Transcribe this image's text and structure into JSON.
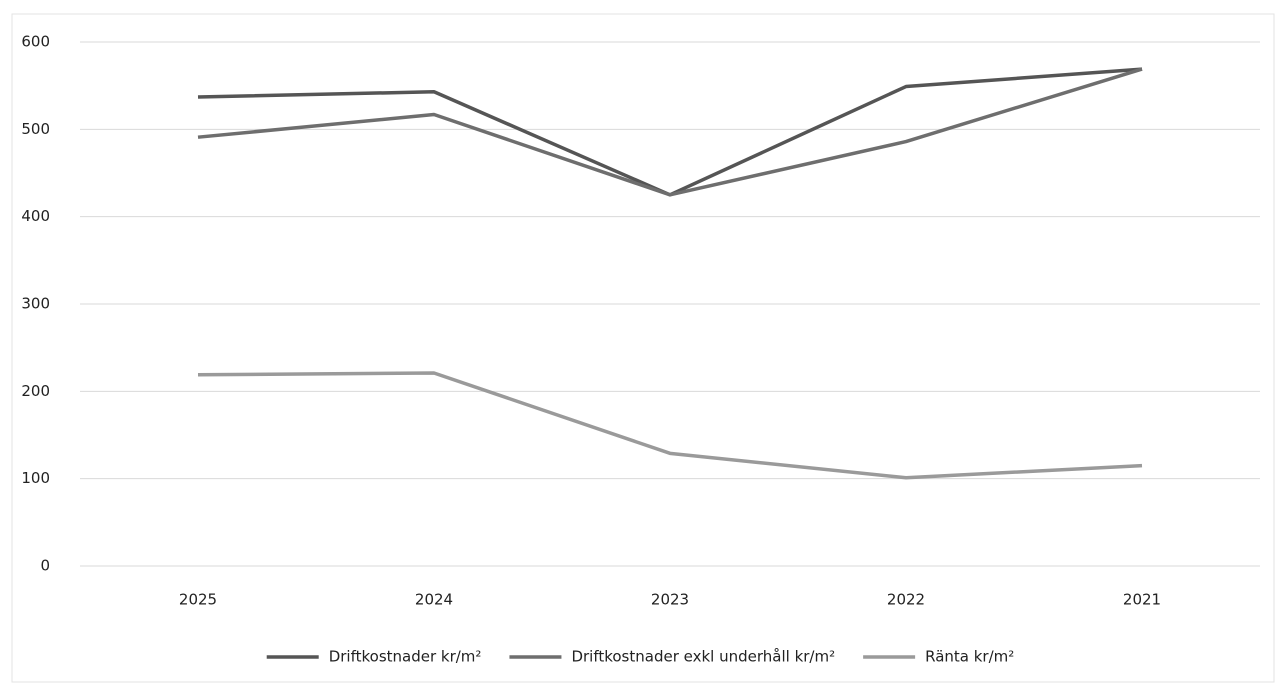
{
  "chart_data": {
    "type": "line",
    "categories": [
      "2025",
      "2024",
      "2023",
      "2022",
      "2021"
    ],
    "series": [
      {
        "name": "Driftkostnader kr/m²",
        "color": "#555555",
        "values": [
          537,
          543,
          425,
          549,
          569
        ]
      },
      {
        "name": "Driftkostnader exkl underhåll kr/m²",
        "color": "#6e6e6e",
        "values": [
          491,
          517,
          425,
          486,
          569
        ]
      },
      {
        "name": "Ränta kr/m²",
        "color": "#9a9a9a",
        "values": [
          219,
          221,
          129,
          101,
          115
        ]
      }
    ],
    "ylim": [
      0,
      600
    ],
    "yticks": [
      0,
      100,
      200,
      300,
      400,
      500,
      600
    ],
    "grid": true,
    "legend": "bottom"
  }
}
